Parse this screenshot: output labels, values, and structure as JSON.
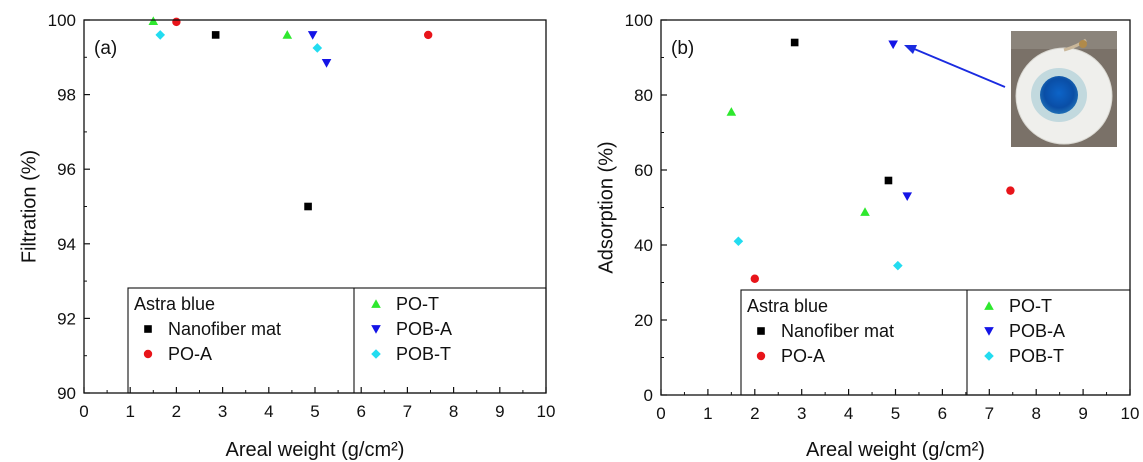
{
  "chart_data": [
    {
      "type": "scatter",
      "panel_label": "(a)",
      "xlabel": "Areal weight (g/cm²)",
      "ylabel": "Filtration (%)",
      "xlim": [
        0,
        10
      ],
      "ylim": [
        90,
        100
      ],
      "xticks": [
        "0",
        "1",
        "2",
        "3",
        "4",
        "5",
        "6",
        "7",
        "8",
        "9",
        "10"
      ],
      "yticks": [
        "90",
        "92",
        "94",
        "96",
        "98",
        "100"
      ],
      "legend_title": "Astra blue",
      "legend_placement": "bottom",
      "series": [
        {
          "name": "Nanofiber mat",
          "color": "#000000",
          "marker": "square",
          "points": [
            [
              2.85,
              99.6
            ],
            [
              4.85,
              95.0
            ]
          ]
        },
        {
          "name": "PO-A",
          "color": "#e8141a",
          "marker": "circle",
          "points": [
            [
              2.0,
              99.95
            ],
            [
              7.45,
              99.6
            ]
          ]
        },
        {
          "name": "PO-T",
          "color": "#2ee82e",
          "marker": "triangle-up",
          "points": [
            [
              1.5,
              99.97
            ],
            [
              4.4,
              99.6
            ]
          ]
        },
        {
          "name": "POB-A",
          "color": "#1414e6",
          "marker": "triangle-down",
          "points": [
            [
              4.95,
              99.6
            ],
            [
              5.25,
              98.85
            ]
          ]
        },
        {
          "name": "POB-T",
          "color": "#22dcf0",
          "marker": "diamond",
          "points": [
            [
              1.65,
              99.6
            ],
            [
              5.05,
              99.25
            ]
          ]
        }
      ]
    },
    {
      "type": "scatter",
      "panel_label": "(b)",
      "xlabel": "Areal weight (g/cm²)",
      "ylabel": "Adsorption (%)",
      "xlim": [
        0,
        10
      ],
      "ylim": [
        0,
        100
      ],
      "xticks": [
        "0",
        "1",
        "2",
        "3",
        "4",
        "5",
        "6",
        "7",
        "8",
        "9",
        "10"
      ],
      "yticks": [
        "0",
        "20",
        "40",
        "60",
        "80",
        "100"
      ],
      "legend_title": "Astra blue",
      "legend_placement": "bottom",
      "inset_photo": "blue-stained-membrane-photo",
      "series": [
        {
          "name": "Nanofiber mat",
          "color": "#000000",
          "marker": "square",
          "points": [
            [
              2.85,
              94.0
            ],
            [
              4.85,
              57.2
            ]
          ]
        },
        {
          "name": "PO-A",
          "color": "#e8141a",
          "marker": "circle",
          "points": [
            [
              2.0,
              31.0
            ],
            [
              7.45,
              54.5
            ]
          ]
        },
        {
          "name": "PO-T",
          "color": "#2ee82e",
          "marker": "triangle-up",
          "points": [
            [
              1.5,
              75.5
            ],
            [
              4.35,
              48.8
            ]
          ]
        },
        {
          "name": "POB-A",
          "color": "#1414e6",
          "marker": "triangle-down",
          "points": [
            [
              4.95,
              93.5
            ],
            [
              5.25,
              53.0
            ]
          ]
        },
        {
          "name": "POB-T",
          "color": "#22dcf0",
          "marker": "diamond",
          "points": [
            [
              1.65,
              41.0
            ],
            [
              5.05,
              34.5
            ]
          ]
        }
      ]
    }
  ]
}
